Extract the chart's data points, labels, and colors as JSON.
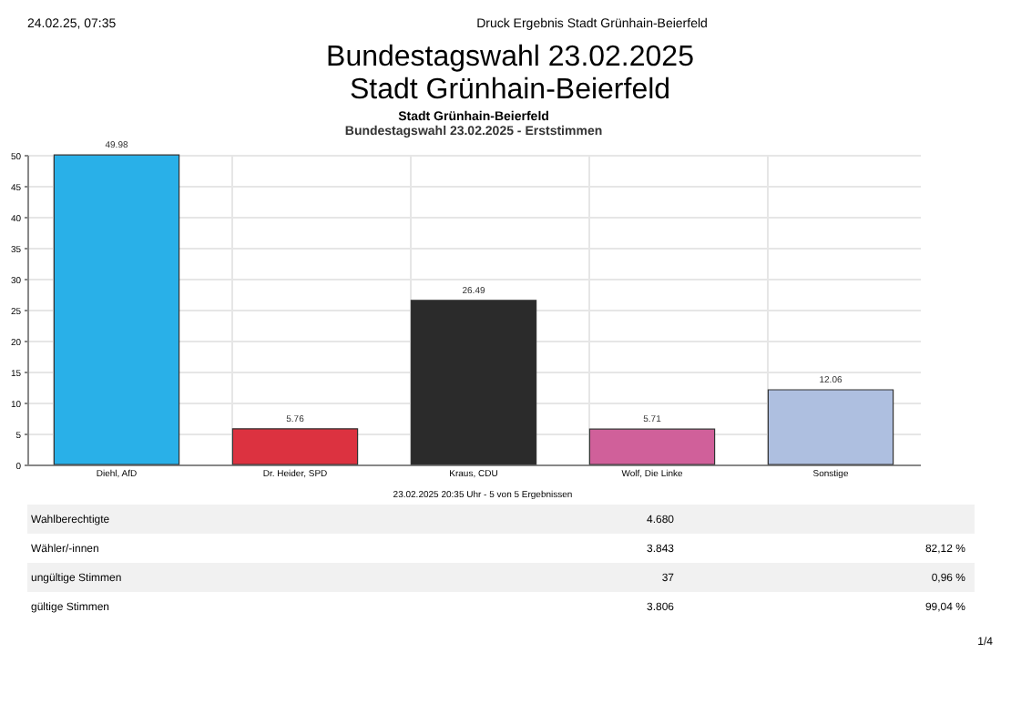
{
  "chart_data": {
    "type": "bar",
    "title": "Stadt Grünhain-Beierfeld",
    "subtitle": "Bundestagswahl 23.02.2025  - Erststimmen",
    "categories": [
      "Diehl, AfD",
      "Dr. Heider, SPD",
      "Kraus, CDU",
      "Wolf, Die Linke",
      "Sonstige"
    ],
    "values": [
      49.98,
      5.76,
      26.49,
      5.71,
      12.06
    ],
    "colors": [
      "#29b0e8",
      "#dc3240",
      "#2b2b2b",
      "#d0609a",
      "#aebfe0"
    ],
    "ylim": [
      0,
      50
    ],
    "yticks": [
      0,
      5,
      10,
      15,
      20,
      25,
      30,
      35,
      40,
      45,
      50
    ],
    "grid": true,
    "data_labels": true,
    "annotations": [
      "24.02.25, 07:35",
      "Druck Ergebnis Stadt Grünhain-Beierfeld",
      "Bundestagswahl 23.02.2025",
      "Stadt Grünhain-Beierfeld",
      "23.02.2025 20:35 Uhr - 5 von 5 Ergebnissen",
      "Wahlberechtigte",
      "4.680",
      "Wähler/-innen",
      "3.843",
      "82,12 %",
      "ungültige Stimmen",
      "37",
      "0,96 %",
      "gültige Stimmen",
      "3.806",
      "99,04 %",
      "1/4"
    ]
  }
}
